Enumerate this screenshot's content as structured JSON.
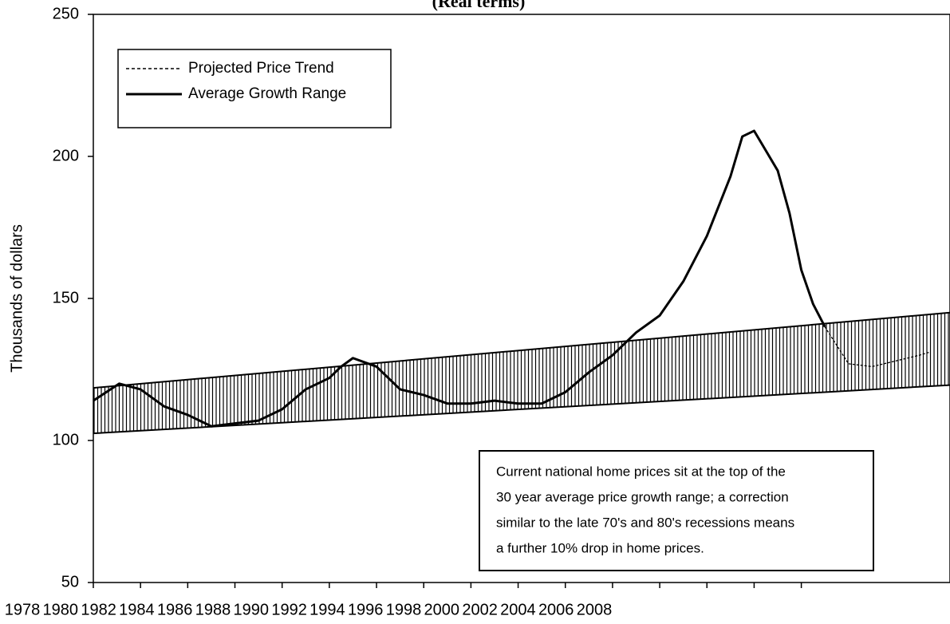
{
  "chart_data": {
    "type": "line",
    "title": "(Real terms)",
    "y_label": "Thousands of dollars",
    "xlim": [
      1978,
      2014.3
    ],
    "ylim": [
      50,
      250
    ],
    "yticks": [
      50,
      100,
      150,
      200,
      250
    ],
    "xticks": [
      1978,
      1980,
      1982,
      1984,
      1986,
      1988,
      1990,
      1992,
      1994,
      1996,
      1998,
      2000,
      2002,
      2004,
      2006,
      2008
    ],
    "series": [
      {
        "color": "#000000",
        "x": [
          1978,
          1979.1,
          1980,
          1981,
          1982,
          1983,
          1984,
          1985,
          1986,
          1987,
          1988,
          1988.5,
          1989,
          1990,
          1991,
          1992,
          1993,
          1994,
          1995,
          1996,
          1997,
          1998,
          1999,
          2000,
          2001,
          2002,
          2003,
          2004,
          2005,
          2005.5,
          2006,
          2006.5,
          2007,
          2007.5,
          2008,
          2008.5,
          2009
        ],
        "values": [
          114,
          120,
          118,
          112,
          109,
          105,
          106,
          107,
          111,
          118,
          122,
          126,
          129,
          126,
          118,
          116,
          113,
          113,
          114,
          113,
          113,
          117,
          124,
          130,
          138,
          144,
          156,
          172,
          193,
          207,
          209,
          202,
          195,
          180,
          160,
          148,
          140
        ]
      },
      {
        "name": "Projected Price Trend",
        "color": "#000000",
        "dashed": true,
        "x": [
          2009,
          2010,
          2011,
          2012,
          2013,
          2013.4
        ],
        "values": [
          140,
          127,
          126,
          128,
          130,
          131
        ]
      },
      {
        "name": "Average Growth Range",
        "color": "#000000",
        "band": true,
        "x": [
          1978,
          2014.3
        ],
        "lower": [
          102.5,
          119.5
        ],
        "upper": [
          118.5,
          145
        ]
      }
    ],
    "annotation": [
      "Current national home prices sit at the top of the",
      "30 year average price growth range; a correction",
      "similar to the late 70's and 80's recessions means",
      "a further 10% drop in home prices."
    ]
  }
}
